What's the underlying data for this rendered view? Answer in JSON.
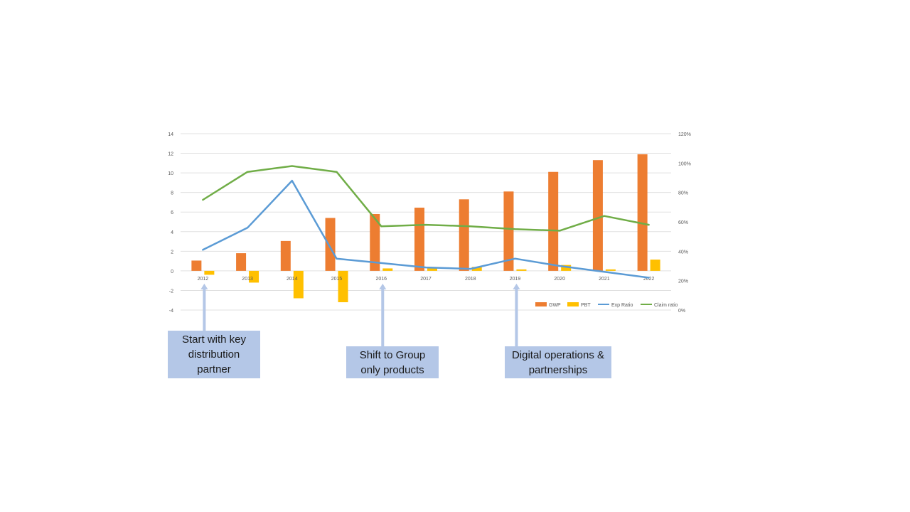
{
  "chart_data": {
    "type": "bar+line",
    "categories": [
      "2012",
      "2013",
      "2014",
      "2015",
      "2016",
      "2017",
      "2018",
      "2019",
      "2020",
      "2021",
      "2022"
    ],
    "series": [
      {
        "name": "GWP",
        "type": "bar",
        "axis": "left",
        "color": "#ed7d31",
        "values": [
          1.05,
          1.8,
          3.05,
          5.4,
          5.8,
          6.45,
          7.3,
          8.1,
          10.1,
          11.3,
          11.9
        ]
      },
      {
        "name": "PBT",
        "type": "bar",
        "axis": "left",
        "color": "#ffc000",
        "values": [
          -0.4,
          -1.2,
          -2.8,
          -3.2,
          0.25,
          0.3,
          0.4,
          0.15,
          0.6,
          0.15,
          1.15
        ]
      },
      {
        "name": "Exp Ratio",
        "type": "line",
        "axis": "right",
        "color": "#5b9bd5",
        "values": [
          41,
          56,
          88,
          35,
          32,
          29,
          28,
          35,
          30,
          26,
          22
        ]
      },
      {
        "name": "Claim ratio",
        "type": "line",
        "axis": "right",
        "color": "#70ad47",
        "values": [
          75,
          94,
          98,
          94,
          57,
          58,
          57,
          55,
          54,
          64,
          58
        ]
      }
    ],
    "y_left": {
      "min": -4,
      "max": 14,
      "step": 2,
      "ticks": [
        "-4",
        "-2",
        "0",
        "2",
        "4",
        "6",
        "8",
        "10",
        "12",
        "14"
      ]
    },
    "y_right": {
      "min": 0,
      "max": 120,
      "step": 20,
      "ticks": [
        "0%",
        "20%",
        "40%",
        "60%",
        "80%",
        "100%",
        "120%"
      ]
    },
    "legend_labels": [
      "GWP",
      "PBT",
      "Exp Ratio",
      "Claim ratio"
    ],
    "gridlines": true,
    "legend_position": "bottom-right"
  },
  "annotations": [
    {
      "lines": [
        "Start with key",
        "distribution",
        "partner"
      ],
      "year": "2012"
    },
    {
      "lines": [
        "Shift to Group",
        "only products"
      ],
      "year": "2016"
    },
    {
      "lines": [
        "Digital operations &",
        "partnerships"
      ],
      "year": "2019"
    }
  ],
  "colors": {
    "arrow": "#b4c7e7",
    "callout_bg": "#b4c7e7",
    "grid": "#e0e0e0",
    "tick_text": "#595959"
  }
}
